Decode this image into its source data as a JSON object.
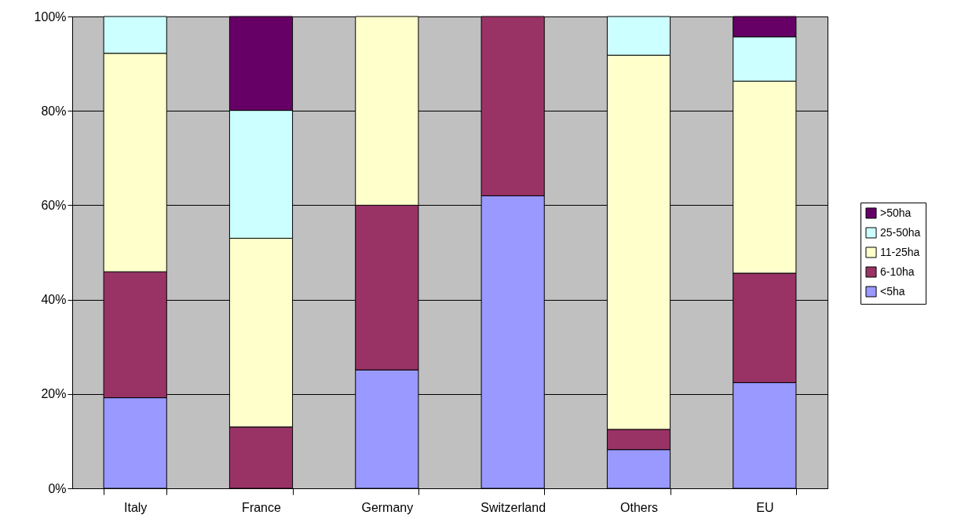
{
  "chart_data": {
    "type": "bar",
    "stacked": true,
    "categories": [
      "Italy",
      "France",
      "Germany",
      "Switzerland",
      "Others",
      "EU"
    ],
    "series": [
      {
        "name": "<5ha",
        "color": "#9999ff",
        "values": [
          19.2,
          0,
          25.1,
          62,
          8.2,
          22.4
        ]
      },
      {
        "name": "6-10ha",
        "color": "#993366",
        "values": [
          26.7,
          13,
          34.9,
          38,
          4.3,
          23.2
        ]
      },
      {
        "name": "11-25ha",
        "color": "#ffffcc",
        "values": [
          46.3,
          40,
          40,
          0,
          79.3,
          40.7
        ]
      },
      {
        "name": "25-50ha",
        "color": "#ccffff",
        "values": [
          7.8,
          27.1,
          0,
          0,
          8.2,
          9.4
        ]
      },
      {
        "name": ">50ha",
        "color": "#660066",
        "values": [
          0,
          19.9,
          0,
          0,
          0,
          4.3
        ]
      }
    ],
    "ylim": [
      0,
      100
    ],
    "yticks": [
      {
        "value": 0,
        "label": "0%"
      },
      {
        "value": 20,
        "label": "20%"
      },
      {
        "value": 40,
        "label": "40%"
      },
      {
        "value": 60,
        "label": "60%"
      },
      {
        "value": 80,
        "label": "80%"
      },
      {
        "value": 100,
        "label": "100%"
      }
    ],
    "grid": "y",
    "legend": "right"
  }
}
